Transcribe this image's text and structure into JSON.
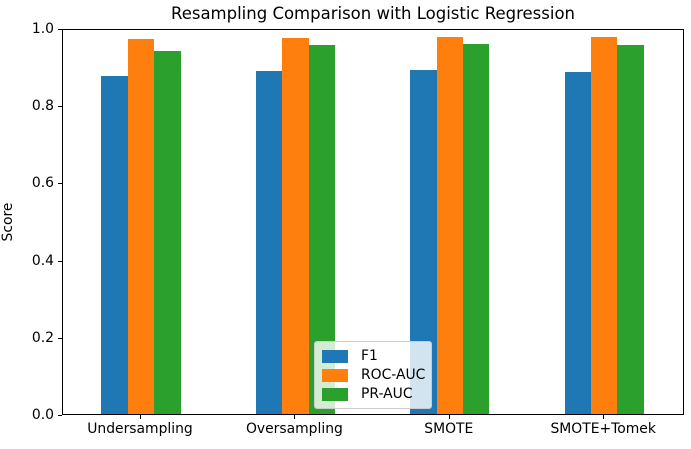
{
  "chart_data": {
    "type": "bar",
    "title": "Resampling Comparison with Logistic Regression",
    "xlabel": "",
    "ylabel": "Score",
    "categories": [
      "Undersampling",
      "Oversampling",
      "SMOTE",
      "SMOTE+Tomek"
    ],
    "series": [
      {
        "name": "F1",
        "color": "#1f77b4",
        "values": [
          0.875,
          0.889,
          0.892,
          0.886
        ]
      },
      {
        "name": "ROC-AUC",
        "color": "#ff7f0e",
        "values": [
          0.971,
          0.975,
          0.977,
          0.977
        ]
      },
      {
        "name": "PR-AUC",
        "color": "#2ca02c",
        "values": [
          0.94,
          0.955,
          0.958,
          0.955
        ]
      }
    ],
    "ylim": [
      0.0,
      1.0
    ],
    "yticks": [
      "0.0",
      "0.2",
      "0.4",
      "0.6",
      "0.8",
      "1.0"
    ],
    "grid": false,
    "legend_position": "lower center"
  }
}
